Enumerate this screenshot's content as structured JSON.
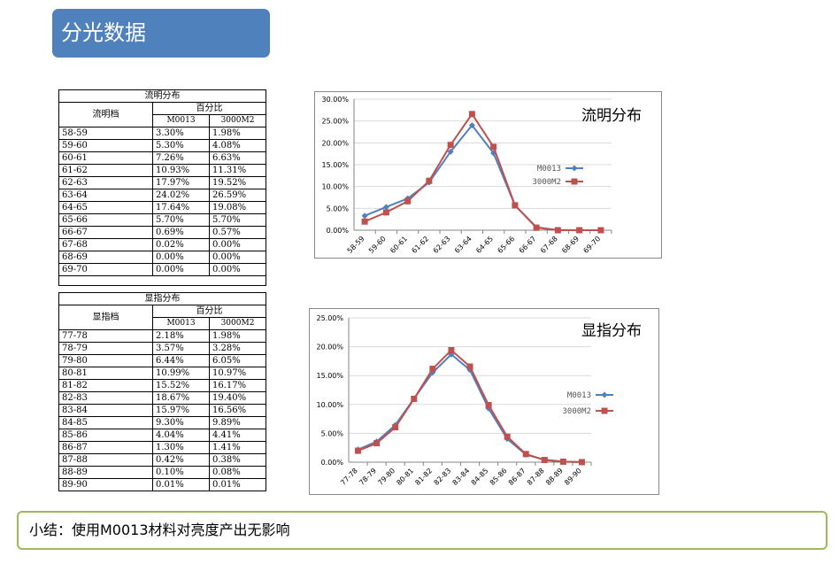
{
  "page_title": "分光数据",
  "summary": "小结：使用M0013材料对亮度产出无影响",
  "colors": {
    "title_bg": "#4f81bd",
    "series1": "#4f81bd",
    "series2": "#c0504d",
    "summary_border": "#9bbb59"
  },
  "tables": [
    {
      "title": "流明分布",
      "row_header": "流明档",
      "group_header": "百分比",
      "columns": [
        "M0013",
        "3000M2"
      ],
      "rows": [
        [
          "58-59",
          "3.30%",
          "1.98%"
        ],
        [
          "59-60",
          "5.30%",
          "4.08%"
        ],
        [
          "60-61",
          "7.26%",
          "6.63%"
        ],
        [
          "61-62",
          "10.93%",
          "11.31%"
        ],
        [
          "62-63",
          "17.97%",
          "19.52%"
        ],
        [
          "63-64",
          "24.02%",
          "26.59%"
        ],
        [
          "64-65",
          "17.64%",
          "19.08%"
        ],
        [
          "65-66",
          "5.70%",
          "5.70%"
        ],
        [
          "66-67",
          "0.69%",
          "0.57%"
        ],
        [
          "67-68",
          "0.02%",
          "0.00%"
        ],
        [
          "68-69",
          "0.00%",
          "0.00%"
        ],
        [
          "69-70",
          "0.00%",
          "0.00%"
        ]
      ]
    },
    {
      "title": "显指分布",
      "row_header": "显指档",
      "group_header": "百分比",
      "columns": [
        "M0013",
        "3000M2"
      ],
      "rows": [
        [
          "77-78",
          "2.18%",
          "1.98%"
        ],
        [
          "78-79",
          "3.57%",
          "3.28%"
        ],
        [
          "79-80",
          "6.44%",
          "6.05%"
        ],
        [
          "80-81",
          "10.99%",
          "10.97%"
        ],
        [
          "81-82",
          "15.52%",
          "16.17%"
        ],
        [
          "82-83",
          "18.67%",
          "19.40%"
        ],
        [
          "83-84",
          "15.97%",
          "16.56%"
        ],
        [
          "84-85",
          "9.30%",
          "9.89%"
        ],
        [
          "85-86",
          "4.04%",
          "4.41%"
        ],
        [
          "86-87",
          "1.30%",
          "1.41%"
        ],
        [
          "87-88",
          "0.42%",
          "0.38%"
        ],
        [
          "88-89",
          "0.10%",
          "0.08%"
        ],
        [
          "89-90",
          "0.01%",
          "0.01%"
        ]
      ]
    }
  ],
  "chart_data": [
    {
      "type": "line",
      "title": "流明分布",
      "categories": [
        "58-59",
        "59-60",
        "60-61",
        "61-62",
        "62-63",
        "63-64",
        "64-65",
        "65-66",
        "66-67",
        "67-68",
        "68-69",
        "69-70"
      ],
      "series": [
        {
          "name": "M0013",
          "values": [
            3.3,
            5.3,
            7.26,
            10.93,
            17.97,
            24.02,
            17.64,
            5.7,
            0.69,
            0.02,
            0.0,
            0.0
          ]
        },
        {
          "name": "3000M2",
          "values": [
            1.98,
            4.08,
            6.63,
            11.31,
            19.52,
            26.59,
            19.08,
            5.7,
            0.57,
            0.0,
            0.0,
            0.0
          ]
        }
      ],
      "ylim": [
        0,
        30
      ],
      "yticks": [
        "0.00%",
        "5.00%",
        "10.00%",
        "15.00%",
        "20.00%",
        "25.00%",
        "30.00%"
      ],
      "grid": true,
      "legend": "right"
    },
    {
      "type": "line",
      "title": "显指分布",
      "categories": [
        "77-78",
        "78-79",
        "79-80",
        "80-81",
        "81-82",
        "82-83",
        "83-84",
        "84-85",
        "85-86",
        "86-87",
        "87-88",
        "88-89",
        "89-90"
      ],
      "series": [
        {
          "name": "M0013",
          "values": [
            2.18,
            3.57,
            6.44,
            10.99,
            15.52,
            18.67,
            15.97,
            9.3,
            4.04,
            1.3,
            0.42,
            0.1,
            0.01
          ]
        },
        {
          "name": "3000M2",
          "values": [
            1.98,
            3.28,
            6.05,
            10.97,
            16.17,
            19.4,
            16.56,
            9.89,
            4.41,
            1.41,
            0.38,
            0.08,
            0.01
          ]
        }
      ],
      "ylim": [
        0,
        25
      ],
      "yticks": [
        "0.00%",
        "5.00%",
        "10.00%",
        "15.00%",
        "20.00%",
        "25.00%"
      ],
      "grid": true,
      "legend": "right"
    }
  ]
}
